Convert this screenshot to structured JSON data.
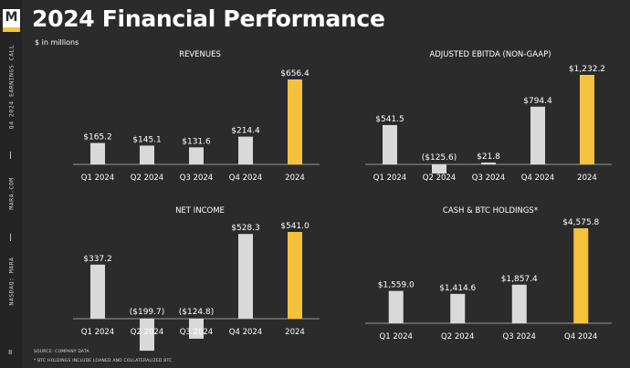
{
  "page": {
    "title": "2024 Financial Performance",
    "subtitle": "$ in millions",
    "page_number": "8",
    "sidebar_texts": [
      "Q4 2024 EARNINGS CALL",
      "MARA.COM",
      "NASDAQ: MARA"
    ],
    "logo_letter": "M",
    "footnotes": [
      "SOURCE: COMPANY DATA",
      "* BTC HOLDINGS INCLUDE LOANED AND COLLATERALIZED BTC"
    ]
  },
  "colors": {
    "bar": "#d9d9d9",
    "highlight": "#f5c23e",
    "background": "#2b2b2b",
    "axis": "#9a9a9a"
  },
  "chart_data": [
    {
      "type": "bar",
      "title": "REVENUES",
      "categories": [
        "Q1 2024",
        "Q2 2024",
        "Q3 2024",
        "Q4 2024",
        "2024"
      ],
      "values": [
        165.2,
        145.1,
        131.6,
        214.4,
        656.4
      ],
      "labels": [
        "$165.2",
        "$145.1",
        "$131.6",
        "$214.4",
        "$656.4"
      ],
      "highlight_index": 4
    },
    {
      "type": "bar",
      "title": "ADJUSTED EBITDA (NON-GAAP)",
      "categories": [
        "Q1 2024",
        "Q2 2024",
        "Q3 2024",
        "Q4 2024",
        "2024"
      ],
      "values": [
        541.5,
        -125.6,
        21.8,
        794.4,
        1232.2
      ],
      "labels": [
        "$541.5",
        "($125.6)",
        "$21.8",
        "$794.4",
        "$1,232.2"
      ],
      "highlight_index": 4
    },
    {
      "type": "bar",
      "title": "NET INCOME",
      "categories": [
        "Q1 2024",
        "Q2 2024",
        "Q3 2024",
        "Q4 2024",
        "2024"
      ],
      "values": [
        337.2,
        -199.7,
        -124.8,
        528.3,
        541.0
      ],
      "labels": [
        "$337.2",
        "($199.7)",
        "($124.8)",
        "$528.3",
        "$541.0"
      ],
      "highlight_index": 4
    },
    {
      "type": "bar",
      "title": "CASH & BTC HOLDINGS*",
      "categories": [
        "Q1 2024",
        "Q2 2024",
        "Q3 2024",
        "Q4 2024"
      ],
      "values": [
        1559.0,
        1414.6,
        1857.4,
        4575.8
      ],
      "labels": [
        "$1,559.0",
        "$1,414.6",
        "$1,857.4",
        "$4,575.8"
      ],
      "highlight_index": 3
    }
  ]
}
